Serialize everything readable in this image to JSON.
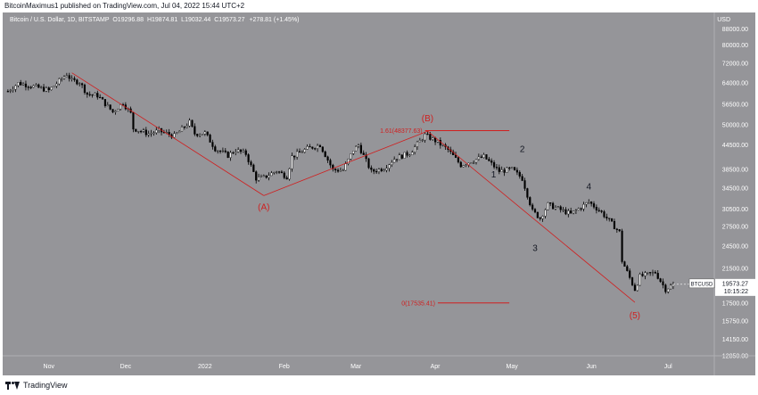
{
  "header": {
    "publish_line": "BitcoinMaximus1 published on TradingView.com, Jul 04, 2022 15:44 UTC+2"
  },
  "symbol": {
    "name": "Bitcoin / U.S. Dollar, 1D, BITSTAMP",
    "open_label": "O",
    "open": "19296.88",
    "high_label": "H",
    "high": "19874.81",
    "low_label": "L",
    "low": "19032.44",
    "close_label": "C",
    "close": "19573.27",
    "change": "+278.81 (+1.45%)"
  },
  "currency": "USD",
  "footer": {
    "brand": "TradingView"
  },
  "colors": {
    "background": "#959599",
    "bull": "#ffffff",
    "bear": "#000000",
    "annotation": "#d01f1f",
    "wave_text": "#131722"
  },
  "chart_data": {
    "type": "candlestick",
    "scale": "log",
    "ylim": [
      12850,
      97000
    ],
    "y_ticks": [
      "88000.00",
      "80000.00",
      "72000.00",
      "64000.00",
      "56500.00",
      "50000.00",
      "44500.00",
      "38500.00",
      "34500.00",
      "30500.00",
      "27500.00",
      "24500.00",
      "21500.00",
      "19573.27",
      "17500.00",
      "15750.00",
      "14150.00",
      "12850.00"
    ],
    "x_ticks": [
      "Nov",
      "Dec",
      "2022",
      "Feb",
      "Mar",
      "Apr",
      "May",
      "Jun",
      "Jul"
    ],
    "x_tick_dates": [
      "2021-11-01",
      "2021-12-01",
      "2022-01-01",
      "2022-02-01",
      "2022-03-01",
      "2022-04-01",
      "2022-05-01",
      "2022-06-01",
      "2022-07-01"
    ],
    "last_price": {
      "symbol": "BTCUSD",
      "value": "19573.27",
      "countdown": "10:15:22"
    },
    "series_path": [
      [
        "2021-10-16",
        61000
      ],
      [
        "2021-10-20",
        64000
      ],
      [
        "2021-10-25",
        63000
      ],
      [
        "2021-11-01",
        61300
      ],
      [
        "2021-11-08",
        67500
      ],
      [
        "2021-11-10",
        64900
      ],
      [
        "2021-11-13",
        64400
      ],
      [
        "2021-11-16",
        60000
      ],
      [
        "2021-11-20",
        59500
      ],
      [
        "2021-11-26",
        54000
      ],
      [
        "2021-11-30",
        57000
      ],
      [
        "2021-12-03",
        53500
      ],
      [
        "2021-12-04",
        49000
      ],
      [
        "2021-12-10",
        47500
      ],
      [
        "2021-12-14",
        48300
      ],
      [
        "2021-12-20",
        46900
      ],
      [
        "2021-12-26",
        50800
      ],
      [
        "2021-12-28",
        47500
      ],
      [
        "2022-01-01",
        47700
      ],
      [
        "2022-01-05",
        43500
      ],
      [
        "2022-01-10",
        41800
      ],
      [
        "2022-01-13",
        43100
      ],
      [
        "2022-01-17",
        42200
      ],
      [
        "2022-01-21",
        36500
      ],
      [
        "2022-01-24",
        36700
      ],
      [
        "2022-01-29",
        38200
      ],
      [
        "2022-02-02",
        36900
      ],
      [
        "2022-02-04",
        41500
      ],
      [
        "2022-02-10",
        43500
      ],
      [
        "2022-02-15",
        44500
      ],
      [
        "2022-02-20",
        38400
      ],
      [
        "2022-02-24",
        38300
      ],
      [
        "2022-02-28",
        43200
      ],
      [
        "2022-03-02",
        44400
      ],
      [
        "2022-03-07",
        38000
      ],
      [
        "2022-03-12",
        38800
      ],
      [
        "2022-03-16",
        41000
      ],
      [
        "2022-03-22",
        42400
      ],
      [
        "2022-03-28",
        47100
      ],
      [
        "2022-04-01",
        45600
      ],
      [
        "2022-04-06",
        43200
      ],
      [
        "2022-04-11",
        39500
      ],
      [
        "2022-04-20",
        41500
      ],
      [
        "2022-04-26",
        38100
      ],
      [
        "2022-05-01",
        38500
      ],
      [
        "2022-05-05",
        36500
      ],
      [
        "2022-05-09",
        30100
      ],
      [
        "2022-05-12",
        28900
      ],
      [
        "2022-05-15",
        31300
      ],
      [
        "2022-05-24",
        29600
      ],
      [
        "2022-05-31",
        31800
      ],
      [
        "2022-06-05",
        29900
      ],
      [
        "2022-06-12",
        26600
      ],
      [
        "2022-06-13",
        22500
      ],
      [
        "2022-06-18",
        19000
      ],
      [
        "2022-06-20",
        20500
      ],
      [
        "2022-06-26",
        21000
      ],
      [
        "2022-06-30",
        19000
      ],
      [
        "2022-07-03",
        19573.27
      ]
    ],
    "annotations": {
      "waves": [
        {
          "label": "(A)",
          "date": "2022-01-24",
          "price": 33000,
          "color": "#d01f1f"
        },
        {
          "label": "(B)",
          "date": "2022-03-29",
          "price": 48234,
          "color": "#d01f1f"
        },
        {
          "label": "1",
          "date": "2022-04-21",
          "price": 39500,
          "color": "#131722"
        },
        {
          "label": "2",
          "date": "2022-05-05",
          "price": 40000,
          "color": "#131722"
        },
        {
          "label": "3",
          "date": "2022-05-10",
          "price": 26700,
          "color": "#131722"
        },
        {
          "label": "4",
          "date": "2022-05-31",
          "price": 32500,
          "color": "#131722"
        },
        {
          "label": "(5)",
          "date": "2022-06-18",
          "price": 17600,
          "color": "#d01f1f"
        }
      ],
      "fib_levels": [
        {
          "label": "1.61(48377.63)",
          "price": 48377.63,
          "start": "2022-03-28",
          "end": "2022-04-16"
        },
        {
          "label": "0(17535.41)",
          "price": 17535.41,
          "start": "2022-04-02",
          "end": "2022-04-16"
        }
      ]
    }
  }
}
